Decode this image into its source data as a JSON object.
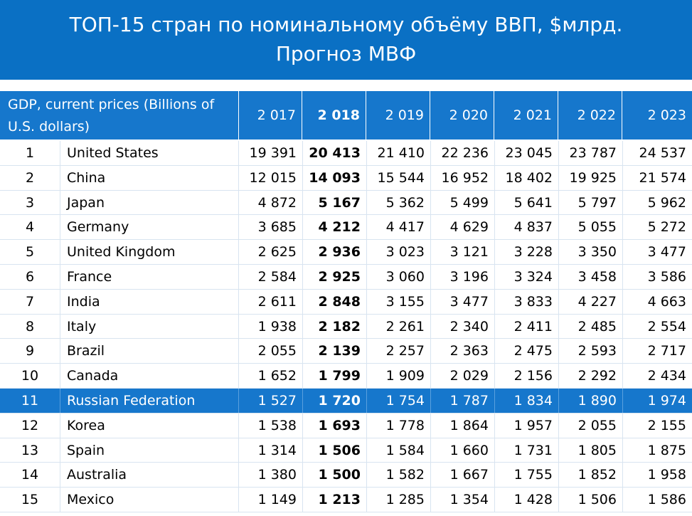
{
  "title": {
    "line1": "ТОП-15 стран по номинальному объёму ВВП, $млрд.",
    "line2": "Прогноз МВФ"
  },
  "table": {
    "header_label": "GDP, current prices (Billions of U.S. dollars)",
    "years": [
      "2 017",
      "2 018",
      "2 019",
      "2 020",
      "2 021",
      "2 022",
      "2 023"
    ],
    "bold_year_index": 1,
    "highlight_rank": 11,
    "rows": [
      {
        "rank": "1",
        "country": "United States",
        "values": [
          "19 391",
          "20 413",
          "21 410",
          "22 236",
          "23 045",
          "23 787",
          "24 537"
        ]
      },
      {
        "rank": "2",
        "country": "China",
        "values": [
          "12 015",
          "14 093",
          "15 544",
          "16 952",
          "18 402",
          "19 925",
          "21 574"
        ]
      },
      {
        "rank": "3",
        "country": "Japan",
        "values": [
          "4 872",
          "5 167",
          "5 362",
          "5 499",
          "5 641",
          "5 797",
          "5 962"
        ]
      },
      {
        "rank": "4",
        "country": "Germany",
        "values": [
          "3 685",
          "4 212",
          "4 417",
          "4 629",
          "4 837",
          "5 055",
          "5 272"
        ]
      },
      {
        "rank": "5",
        "country": "United Kingdom",
        "values": [
          "2 625",
          "2 936",
          "3 023",
          "3 121",
          "3 228",
          "3 350",
          "3 477"
        ]
      },
      {
        "rank": "6",
        "country": "France",
        "values": [
          "2 584",
          "2 925",
          "3 060",
          "3 196",
          "3 324",
          "3 458",
          "3 586"
        ]
      },
      {
        "rank": "7",
        "country": "India",
        "values": [
          "2 611",
          "2 848",
          "3 155",
          "3 477",
          "3 833",
          "4 227",
          "4 663"
        ]
      },
      {
        "rank": "8",
        "country": "Italy",
        "values": [
          "1 938",
          "2 182",
          "2 261",
          "2 340",
          "2 411",
          "2 485",
          "2 554"
        ]
      },
      {
        "rank": "9",
        "country": "Brazil",
        "values": [
          "2 055",
          "2 139",
          "2 257",
          "2 363",
          "2 475",
          "2 593",
          "2 717"
        ]
      },
      {
        "rank": "10",
        "country": "Canada",
        "values": [
          "1 652",
          "1 799",
          "1 909",
          "2 029",
          "2 156",
          "2 292",
          "2 434"
        ]
      },
      {
        "rank": "11",
        "country": "Russian Federation",
        "values": [
          "1 527",
          "1 720",
          "1 754",
          "1 787",
          "1 834",
          "1 890",
          "1 974"
        ]
      },
      {
        "rank": "12",
        "country": "Korea",
        "values": [
          "1 538",
          "1 693",
          "1 778",
          "1 864",
          "1 957",
          "2 055",
          "2 155"
        ]
      },
      {
        "rank": "13",
        "country": "Spain",
        "values": [
          "1 314",
          "1 506",
          "1 584",
          "1 660",
          "1 731",
          "1 805",
          "1 875"
        ]
      },
      {
        "rank": "14",
        "country": "Australia",
        "values": [
          "1 380",
          "1 500",
          "1 582",
          "1 667",
          "1 755",
          "1 852",
          "1 958"
        ]
      },
      {
        "rank": "15",
        "country": "Mexico",
        "values": [
          "1 149",
          "1 213",
          "1 285",
          "1 354",
          "1 428",
          "1 506",
          "1 586"
        ]
      }
    ]
  },
  "colors": {
    "title_band": "#0a70c4",
    "header_band": "#1677cc",
    "highlight_row": "#1677cc"
  }
}
